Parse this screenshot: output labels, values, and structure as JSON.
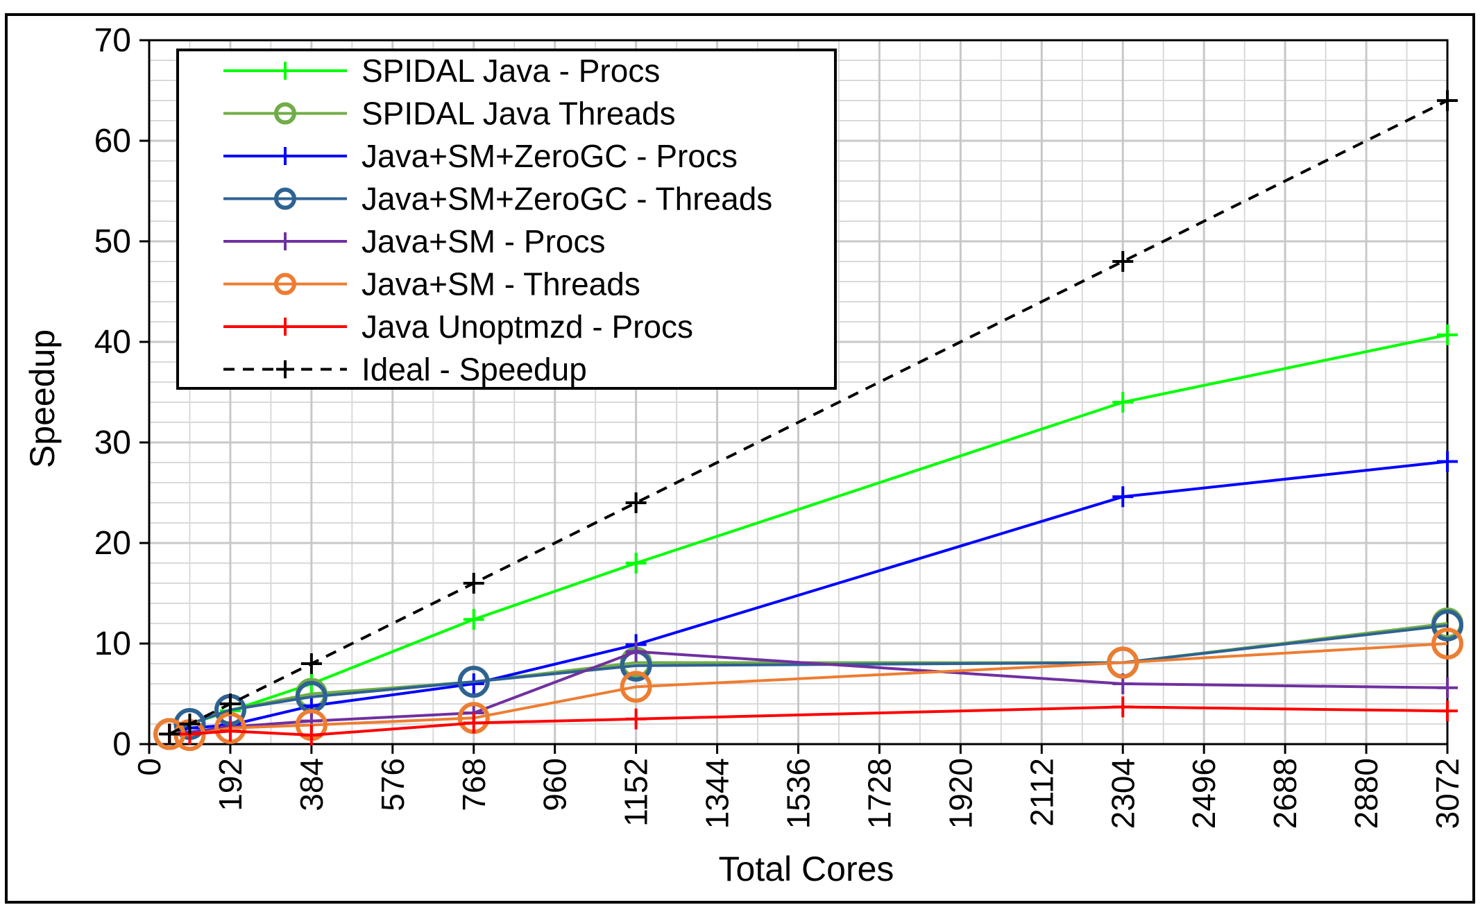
{
  "chart_data": {
    "type": "line",
    "xlabel": "Total Cores",
    "ylabel": "Speedup",
    "xlim": [
      0,
      3072
    ],
    "ylim": [
      0,
      70
    ],
    "x_ticks": [
      0,
      192,
      384,
      576,
      768,
      960,
      1152,
      1344,
      1536,
      1728,
      1920,
      2112,
      2304,
      2496,
      2688,
      2880,
      3072
    ],
    "y_ticks": [
      0,
      10,
      20,
      30,
      40,
      50,
      60,
      70
    ],
    "grid": "on",
    "legend_position": "top-left",
    "series": [
      {
        "name": "SPIDAL Java - Procs",
        "color": "#00ff00",
        "marker": "plus",
        "dash": false,
        "x": [
          48,
          96,
          192,
          384,
          768,
          1152,
          2304,
          3072
        ],
        "y": [
          1,
          2,
          3.3,
          6,
          12.4,
          18,
          34,
          40.7
        ]
      },
      {
        "name": "SPIDAL Java Threads",
        "color": "#70ad47",
        "marker": "circle",
        "dash": false,
        "x": [
          48,
          96,
          192,
          384,
          768,
          1152,
          2304,
          3072
        ],
        "y": [
          1,
          2,
          3.4,
          5,
          6.2,
          8.1,
          8.1,
          12
        ]
      },
      {
        "name": "Java+SM+ZeroGC - Procs",
        "color": "#0000ff",
        "marker": "plus",
        "dash": false,
        "x": [
          48,
          96,
          192,
          384,
          768,
          1152,
          2304,
          3072
        ],
        "y": [
          1,
          1.6,
          1.9,
          3.8,
          6,
          9.9,
          24.6,
          28.1
        ]
      },
      {
        "name": "Java+SM+ZeroGC - Threads",
        "color": "#2e6293",
        "marker": "circle",
        "dash": false,
        "x": [
          48,
          96,
          192,
          384,
          768,
          1152,
          2304,
          3072
        ],
        "y": [
          1,
          2,
          3.4,
          4.7,
          6.2,
          7.8,
          8.1,
          11.8
        ]
      },
      {
        "name": "Java+SM - Procs",
        "color": "#7030a0",
        "marker": "plus",
        "dash": false,
        "x": [
          48,
          96,
          192,
          384,
          768,
          1152,
          2304,
          3072
        ],
        "y": [
          1,
          1.2,
          1.7,
          2.3,
          3.1,
          9.2,
          6,
          5.6
        ]
      },
      {
        "name": "Java+SM - Threads",
        "color": "#ed7d31",
        "marker": "circle",
        "dash": false,
        "x": [
          48,
          96,
          192,
          384,
          768,
          1152,
          2304,
          3072
        ],
        "y": [
          1,
          0.9,
          1.6,
          1.9,
          2.6,
          5.7,
          8.1,
          10
        ]
      },
      {
        "name": "Java Unoptmzd - Procs",
        "color": "#ff0000",
        "marker": "plus",
        "dash": false,
        "x": [
          48,
          96,
          192,
          384,
          768,
          1152,
          2304,
          3072
        ],
        "y": [
          1,
          1,
          1.3,
          0.9,
          2.1,
          2.5,
          3.7,
          3.3
        ]
      },
      {
        "name": "Ideal - Speedup",
        "color": "#000000",
        "marker": "plus",
        "dash": true,
        "x": [
          48,
          96,
          192,
          384,
          768,
          1152,
          2304,
          3072
        ],
        "y": [
          1,
          2,
          4,
          8,
          16,
          24,
          48,
          64
        ]
      }
    ]
  }
}
